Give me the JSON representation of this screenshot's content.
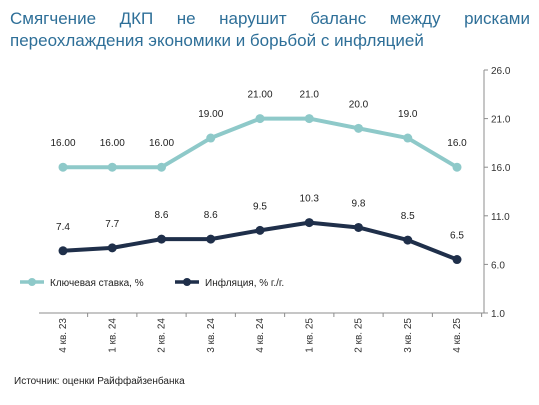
{
  "title_line1": "Смягчение ДКП не нарушит баланс между рисками",
  "title_line2": "переохлаждения экономики и борьбой с инфляцией",
  "source": "Источник: оценки Райффайзенбанка",
  "colors": {
    "title": "#2e6f98",
    "key_rate": "#8ec9c9",
    "inflation": "#1f2f4a",
    "axis": "#8c8c8c"
  },
  "chart_data": {
    "type": "line",
    "categories": [
      "4 кв. 23",
      "1 кв. 24",
      "2 кв. 24",
      "3 кв. 24",
      "4 кв. 24",
      "1 кв. 25",
      "2 кв. 25",
      "3 кв. 25",
      "4 кв. 25"
    ],
    "series": [
      {
        "name": "Ключевая ставка, %",
        "values": [
          16.0,
          16.0,
          16.0,
          19.0,
          21.0,
          21.0,
          20.0,
          19.0,
          16.0
        ],
        "labels": [
          "16.00",
          "16.00",
          "16.00",
          "19.00",
          "21.00",
          "21.0",
          "20.0",
          "19.0",
          "16.0"
        ]
      },
      {
        "name": "Инфляция, % г./г.",
        "values": [
          7.4,
          7.7,
          8.6,
          8.6,
          9.5,
          10.3,
          9.8,
          8.5,
          6.5
        ],
        "labels": [
          "7.4",
          "7.7",
          "8.6",
          "8.6",
          "9.5",
          "10.3",
          "9.8",
          "8.5",
          "6.5"
        ]
      }
    ],
    "y_axis": {
      "position": "right",
      "ylim": [
        1.0,
        26.0
      ],
      "ticks": [
        "1.0",
        "6.0",
        "11.0",
        "16.0",
        "21.0",
        "26.0"
      ]
    },
    "legend_position": "bottom-left",
    "grid": false
  }
}
